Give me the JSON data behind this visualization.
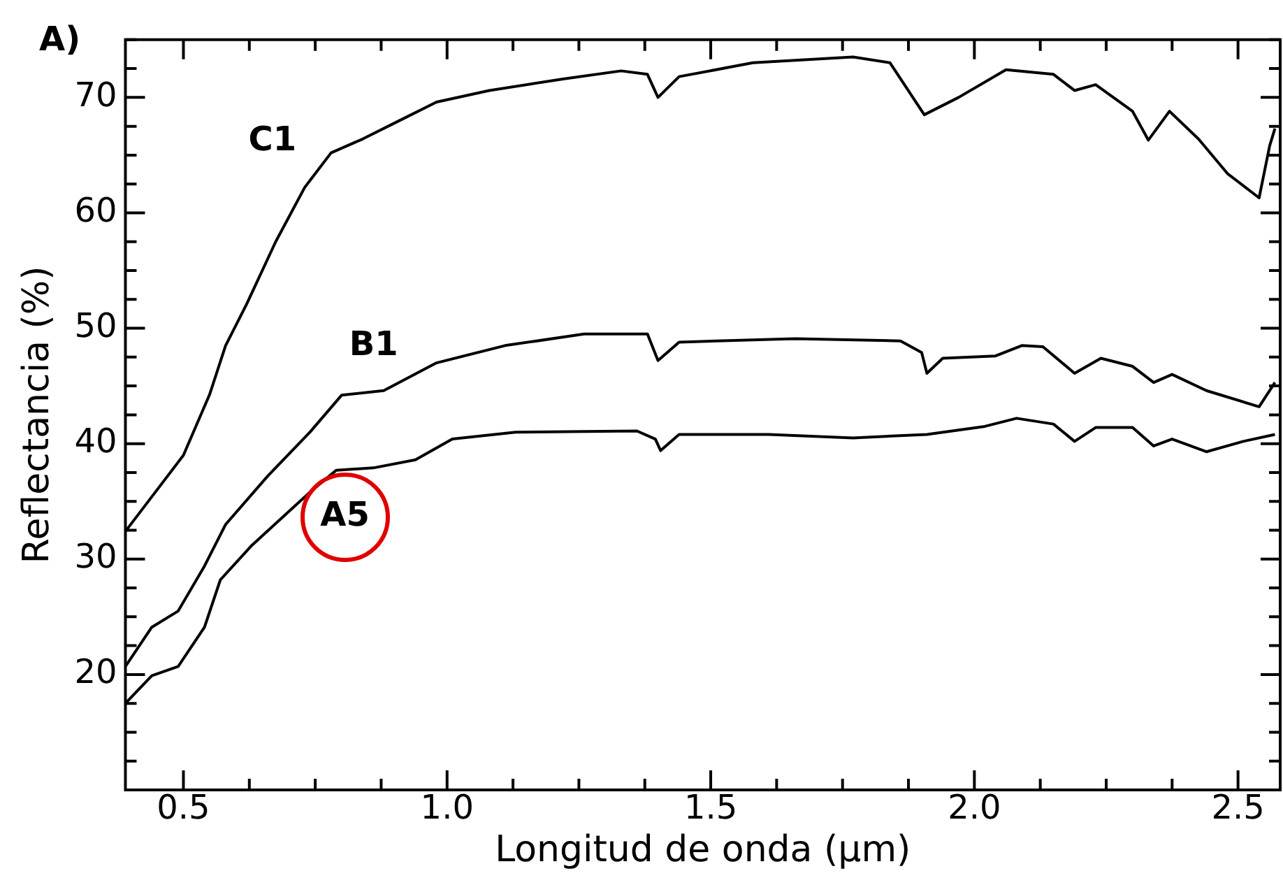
{
  "chart_data": {
    "type": "line",
    "xlabel": "Longitud de onda (µm)",
    "ylabel": "Reflectancia (%)",
    "annotations": [
      "A)"
    ],
    "xlim": [
      0.39,
      2.58
    ],
    "ylim": [
      10,
      75
    ],
    "xticks": [
      0.5,
      {
        "value": 0.625,
        "label": null
      },
      {
        "value": 0.75,
        "label": null
      },
      {
        "value": 0.875,
        "label": null
      },
      {
        "value": 1,
        "label": "1.0"
      },
      {
        "value": 1.125,
        "label": null
      },
      {
        "value": 1.25,
        "label": null
      },
      {
        "value": 1.375,
        "label": null
      },
      1.5,
      {
        "value": 1.625,
        "label": null
      },
      {
        "value": 1.75,
        "label": null
      },
      {
        "value": 1.875,
        "label": null
      },
      {
        "value": 2,
        "label": "2.0"
      },
      {
        "value": 2.125,
        "label": null
      },
      {
        "value": 2.25,
        "label": null
      },
      {
        "value": 2.375,
        "label": null
      },
      2.5
    ],
    "yticks": [
      {
        "value": 10,
        "label": null
      },
      {
        "value": 12.5,
        "label": null
      },
      {
        "value": 15,
        "label": null
      },
      {
        "value": 17.5,
        "label": null
      },
      20,
      {
        "value": 22.5,
        "label": null
      },
      {
        "value": 25,
        "label": null
      },
      {
        "value": 27.5,
        "label": null
      },
      30,
      {
        "value": 32.5,
        "label": null
      },
      {
        "value": 35,
        "label": null
      },
      {
        "value": 37.5,
        "label": null
      },
      40,
      {
        "value": 42.5,
        "label": null
      },
      {
        "value": 45,
        "label": null
      },
      {
        "value": 47.5,
        "label": null
      },
      50,
      {
        "value": 52.5,
        "label": null
      },
      {
        "value": 55,
        "label": null
      },
      {
        "value": 57.5,
        "label": null
      },
      60,
      {
        "value": 62.5,
        "label": null
      },
      {
        "value": 65,
        "label": null
      },
      {
        "value": 67.5,
        "label": null
      },
      70,
      {
        "value": 72.5,
        "label": null
      },
      {
        "value": 75,
        "label": null
      }
    ],
    "grid": false,
    "legend": false,
    "marker": "none",
    "line_style": "solid",
    "series": [
      {
        "name": "C1",
        "color": "#000000",
        "x": [
          0.39,
          0.44,
          0.5,
          0.55,
          0.58,
          0.62,
          0.675,
          0.73,
          0.78,
          0.84,
          0.91,
          0.98,
          1.08,
          1.22,
          1.33,
          1.38,
          1.4,
          1.44,
          1.58,
          1.77,
          1.84,
          1.905,
          1.97,
          2.06,
          2.15,
          2.19,
          2.23,
          2.3,
          2.33,
          2.37,
          2.425,
          2.48,
          2.54,
          2.56,
          2.57
        ],
        "values": [
          32.4,
          35.4,
          39.0,
          44.3,
          48.5,
          52.1,
          57.5,
          62.2,
          65.2,
          66.4,
          68.0,
          69.6,
          70.6,
          71.6,
          72.3,
          72.0,
          70.0,
          71.8,
          73.0,
          73.5,
          73.0,
          68.5,
          70.0,
          72.4,
          72.0,
          70.6,
          71.1,
          68.8,
          66.3,
          68.8,
          66.4,
          63.4,
          61.3,
          65.8,
          67.3
        ]
      },
      {
        "name": "B1",
        "color": "#000000",
        "x": [
          0.39,
          0.44,
          0.49,
          0.54,
          0.58,
          0.66,
          0.74,
          0.8,
          0.88,
          0.98,
          1.11,
          1.26,
          1.38,
          1.4,
          1.44,
          1.66,
          1.86,
          1.9,
          1.91,
          1.94,
          2.04,
          2.09,
          2.13,
          2.19,
          2.24,
          2.3,
          2.34,
          2.375,
          2.44,
          2.54,
          2.57
        ],
        "values": [
          20.7,
          24.1,
          25.5,
          29.4,
          33.0,
          37.2,
          41.0,
          44.2,
          44.6,
          47.0,
          48.5,
          49.5,
          49.5,
          47.2,
          48.8,
          49.1,
          48.9,
          47.9,
          46.1,
          47.4,
          47.6,
          48.5,
          48.4,
          46.1,
          47.4,
          46.7,
          45.3,
          46.0,
          44.6,
          43.2,
          45.3
        ]
      },
      {
        "name": "A5",
        "color": "#000000",
        "x": [
          0.39,
          0.44,
          0.49,
          0.54,
          0.57,
          0.63,
          0.74,
          0.79,
          0.86,
          0.94,
          1.01,
          1.13,
          1.36,
          1.395,
          1.405,
          1.44,
          1.61,
          1.77,
          1.91,
          2.02,
          2.08,
          2.15,
          2.19,
          2.23,
          2.3,
          2.34,
          2.375,
          2.44,
          2.51,
          2.57
        ],
        "values": [
          17.5,
          19.9,
          20.7,
          24.1,
          28.2,
          31.2,
          35.8,
          37.7,
          37.9,
          38.6,
          40.4,
          41.0,
          41.1,
          40.4,
          39.4,
          40.8,
          40.8,
          40.5,
          40.8,
          41.5,
          42.2,
          41.7,
          40.2,
          41.4,
          41.4,
          39.8,
          40.4,
          39.3,
          40.2,
          40.8
        ]
      }
    ]
  }
}
